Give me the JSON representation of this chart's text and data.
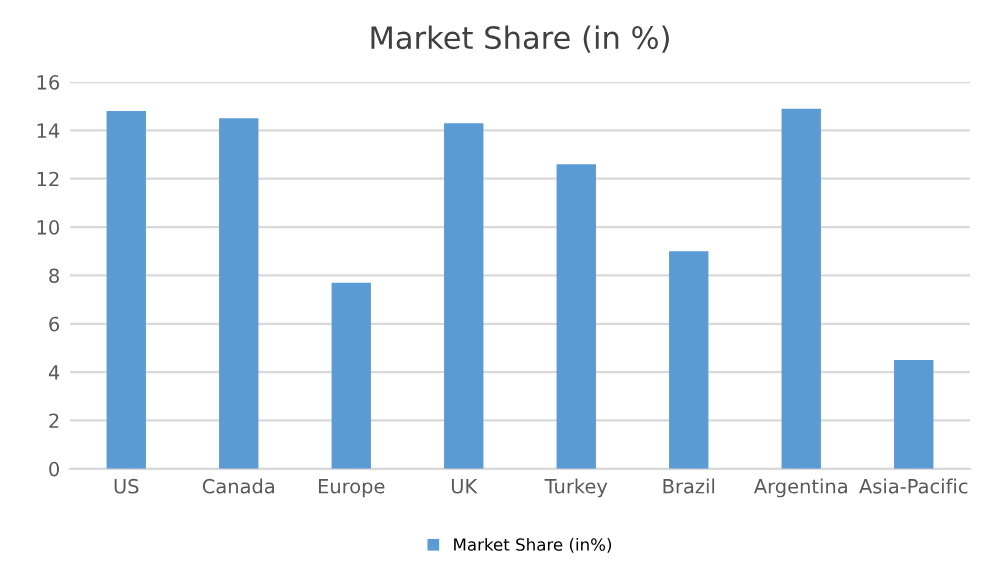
{
  "chart_data": {
    "type": "bar",
    "title": "Market Share (in %)",
    "categories": [
      "US",
      "Canada",
      "Europe",
      "UK",
      "Turkey",
      "Brazil",
      "Argentina",
      "Asia-Pacific"
    ],
    "series": [
      {
        "name": "Market Share (in%)",
        "color": "#5b9bd5",
        "values": [
          14.8,
          14.5,
          7.7,
          14.3,
          12.6,
          9.0,
          14.9,
          4.5
        ]
      }
    ],
    "ylim": [
      0,
      16
    ],
    "yticks": [
      0,
      2,
      4,
      6,
      8,
      10,
      12,
      14,
      16
    ],
    "grid": "y",
    "legend": "bottom"
  }
}
